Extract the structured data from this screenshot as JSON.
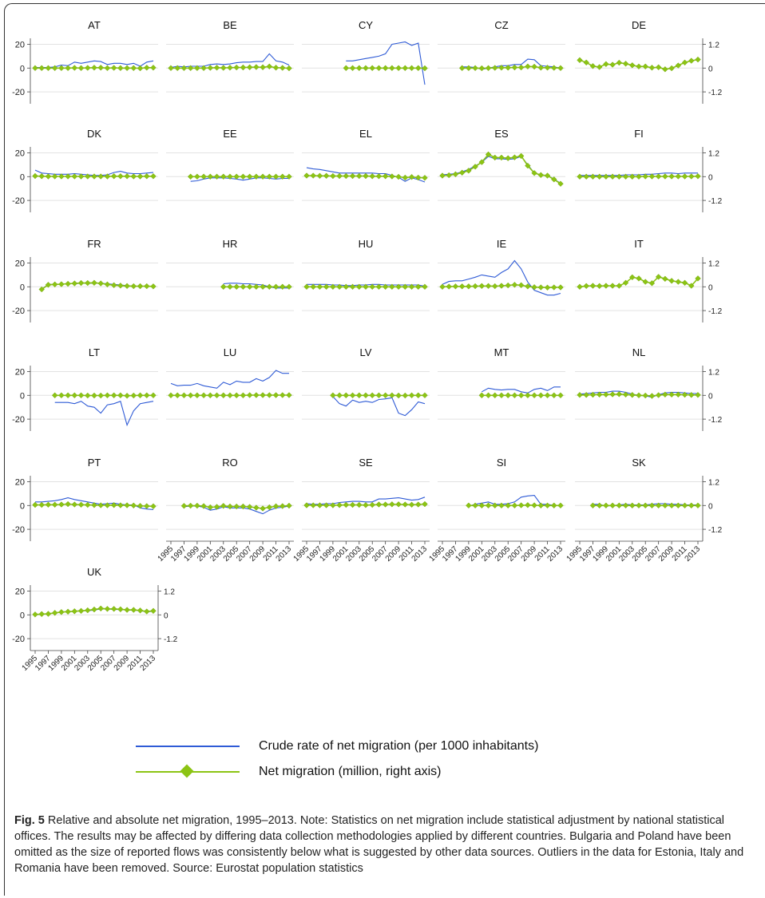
{
  "colors": {
    "rate": "#2f5bd6",
    "net": "#8cc414",
    "grid": "#e2e2e2",
    "axis": "#444444"
  },
  "legend": {
    "rate_label": "Crude rate of net migration (per 1000 inhabitants)",
    "net_label": "Net migration (million, right axis)"
  },
  "caption": {
    "label": "Fig. 5",
    "text": " Relative and absolute net migration, 1995–2013. Note: Statistics on net migration include statistical adjustment by national statistical offices. The results may be affected by differing data collection methodologies applied by different countries. Bulgaria and Poland have been omitted as the size of reported flows was consistently below what is suggested by other data sources. Outliers in the data for Estonia, Italy and Romania have been removed. Source: Eurostat population statistics"
  },
  "chart_data": {
    "type": "line",
    "x": [
      1995,
      1996,
      1997,
      1998,
      1999,
      2000,
      2001,
      2002,
      2003,
      2004,
      2005,
      2006,
      2007,
      2008,
      2009,
      2010,
      2011,
      2012,
      2013
    ],
    "x_tick_labels": [
      "1995",
      "1997",
      "1999",
      "2001",
      "2003",
      "2005",
      "2007",
      "2009",
      "2011",
      "2013"
    ],
    "left_axis": {
      "ticks": [
        20,
        0,
        -20
      ],
      "ylim": [
        -30,
        25
      ]
    },
    "right_axis": {
      "ticks": [
        "1.2",
        "0",
        "-1.2"
      ],
      "tick_values": [
        1.2,
        0,
        -1.2
      ],
      "ylim": [
        -1.8,
        1.5
      ]
    },
    "series_labels": [
      "Crude rate of net migration (per 1000 inhabitants)",
      "Net migration (million, right axis)"
    ],
    "panels": [
      {
        "country": "AT",
        "rate": [
          0.5,
          0.5,
          0.5,
          1,
          2.5,
          2,
          5,
          4,
          5,
          6,
          5.5,
          3,
          4,
          4,
          3,
          4,
          1.5,
          5,
          6
        ],
        "net": [
          0,
          0,
          0,
          0,
          0,
          0,
          0.01,
          0,
          0.01,
          0.02,
          0.02,
          0,
          0.01,
          0,
          0,
          0,
          -0.01,
          0.02,
          0.02
        ]
      },
      {
        "country": "BE",
        "rate": [
          0.5,
          1.5,
          1,
          1.5,
          1.5,
          1.5,
          3,
          3.5,
          3,
          3.5,
          4.5,
          5,
          5,
          5.5,
          5.5,
          12,
          6,
          5,
          2.5
        ],
        "net": [
          0,
          0,
          0,
          0,
          0,
          0,
          0.01,
          0.02,
          0.01,
          0.02,
          0.03,
          0.03,
          0.04,
          0.05,
          0.04,
          0.08,
          0.02,
          0.01,
          -0.01
        ]
      },
      {
        "country": "CY",
        "rate": [
          null,
          null,
          null,
          null,
          null,
          null,
          6,
          6,
          7,
          8,
          9,
          10,
          12,
          20,
          21,
          22,
          19,
          21,
          -14
        ],
        "net": [
          null,
          null,
          null,
          null,
          null,
          null,
          0,
          0,
          0,
          0,
          0,
          0,
          0,
          0,
          0,
          0,
          0,
          0,
          -0.01
        ]
      },
      {
        "country": "CZ",
        "rate": [
          null,
          null,
          null,
          1,
          1,
          0.5,
          -1,
          0,
          1,
          2,
          2,
          3,
          3,
          7.5,
          7,
          2,
          1.5,
          1,
          0
        ],
        "net": [
          null,
          null,
          null,
          0,
          0,
          0,
          -0.01,
          0,
          0.01,
          0.02,
          0.02,
          0.03,
          0.03,
          0.08,
          0.07,
          0.02,
          0.02,
          0.01,
          0
        ]
      },
      {
        "country": "DE",
        "rate": [
          null,
          null,
          null,
          null,
          null,
          null,
          null,
          null,
          null,
          null,
          null,
          null,
          null,
          null,
          null,
          null,
          null,
          null,
          null
        ],
        "net": [
          0.4,
          0.28,
          0.1,
          0.05,
          0.2,
          0.17,
          0.27,
          0.22,
          0.14,
          0.08,
          0.08,
          0.02,
          0.04,
          -0.06,
          -0.01,
          0.13,
          0.28,
          0.37,
          0.43
        ]
      },
      {
        "country": "DK",
        "rate": [
          5.5,
          3,
          2.5,
          2,
          2,
          2,
          2.5,
          2,
          1.5,
          1,
          1,
          1.5,
          3.5,
          4.5,
          3,
          2.5,
          2.5,
          3,
          3.5
        ],
        "net": [
          0.03,
          0.02,
          0.01,
          0.01,
          0.01,
          0.01,
          0.01,
          0.01,
          0.01,
          0.01,
          0.01,
          0.01,
          0.02,
          0.02,
          0.02,
          0.01,
          0.01,
          0.02,
          0.02
        ]
      },
      {
        "country": "EE",
        "rate": [
          null,
          null,
          null,
          -4,
          -3.5,
          -2,
          -1,
          -1,
          -1,
          -1.5,
          -2,
          -3,
          -2,
          -1,
          -1,
          -1.5,
          -2,
          -1.5,
          -1.5
        ],
        "net": [
          null,
          null,
          null,
          0,
          0,
          0,
          0,
          0,
          0,
          0,
          0,
          0,
          0,
          0,
          0,
          0,
          0,
          0,
          0
        ]
      },
      {
        "country": "EL",
        "rate": [
          7.5,
          6.5,
          6,
          5,
          4,
          3,
          3,
          3,
          3,
          3,
          3,
          2.5,
          2.5,
          1,
          -0.5,
          -4,
          -1,
          -2.5,
          -4.5
        ],
        "net": [
          0.05,
          0.05,
          0.04,
          0.04,
          0.03,
          0.03,
          0.03,
          0.03,
          0.03,
          0.03,
          0.02,
          0.02,
          0.02,
          0.01,
          -0.01,
          -0.05,
          -0.02,
          -0.05,
          -0.06
        ]
      },
      {
        "country": "ES",
        "rate": [
          1.5,
          2,
          2.5,
          4,
          6,
          9,
          12,
          17,
          15,
          15,
          14.5,
          15,
          17,
          10,
          3,
          1.5,
          1,
          -2,
          -5.5
        ],
        "net": [
          0.05,
          0.07,
          0.12,
          0.2,
          0.3,
          0.5,
          0.73,
          1.12,
          0.96,
          0.96,
          0.93,
          0.97,
          1.04,
          0.55,
          0.18,
          0.08,
          0.05,
          -0.14,
          -0.36
        ]
      },
      {
        "country": "FI",
        "rate": [
          1,
          1,
          1,
          1,
          1,
          1,
          1,
          1.5,
          1.5,
          1.5,
          2,
          2,
          2.5,
          3,
          3,
          2.5,
          3,
          3,
          3
        ],
        "net": [
          0,
          0,
          0,
          0,
          0,
          0,
          0,
          0,
          0,
          0,
          0.01,
          0.01,
          0.01,
          0.01,
          0.01,
          0.01,
          0.01,
          0.01,
          0.02
        ]
      },
      {
        "country": "FR",
        "rate": [
          null,
          -2,
          2,
          2,
          2,
          2.5,
          2.5,
          3,
          3,
          3,
          3,
          2.5,
          2,
          1.5,
          1,
          0.5,
          0.5,
          0.5,
          0.5
        ],
        "net": [
          null,
          -0.13,
          0.1,
          0.12,
          0.13,
          0.15,
          0.17,
          0.19,
          0.19,
          0.2,
          0.17,
          0.12,
          0.08,
          0.06,
          0.04,
          0.03,
          0.03,
          0.03,
          0.02
        ]
      },
      {
        "country": "HR",
        "rate": [
          null,
          null,
          null,
          null,
          null,
          null,
          null,
          null,
          2.5,
          3,
          3,
          2.5,
          2.5,
          2,
          1.5,
          0,
          -1,
          -1,
          -1
        ],
        "net": [
          null,
          null,
          null,
          null,
          null,
          null,
          null,
          null,
          0,
          0,
          0,
          0,
          0,
          0,
          0,
          0,
          0,
          0,
          0
        ]
      },
      {
        "country": "HU",
        "rate": [
          2,
          2,
          2,
          2,
          1.5,
          1.5,
          1,
          1,
          1.5,
          1.5,
          2,
          2,
          1.5,
          1.5,
          1.5,
          1.5,
          1.5,
          1.5,
          0.5
        ],
        "net": [
          0,
          0,
          0,
          0,
          0,
          0,
          0,
          0,
          0,
          0,
          0,
          0,
          0,
          0,
          0,
          0,
          0,
          0,
          0
        ]
      },
      {
        "country": "IE",
        "rate": [
          2,
          4.5,
          5,
          5,
          6.5,
          8,
          10,
          9,
          8,
          12,
          15,
          22,
          15,
          4,
          -3,
          -5,
          -7,
          -7,
          -5.5
        ],
        "net": [
          0,
          0.01,
          0.02,
          0.02,
          0.02,
          0.03,
          0.04,
          0.04,
          0.03,
          0.05,
          0.07,
          0.1,
          0.08,
          0.02,
          -0.02,
          -0.03,
          -0.04,
          -0.03,
          -0.03
        ]
      },
      {
        "country": "IT",
        "rate": [
          null,
          null,
          null,
          null,
          null,
          null,
          null,
          null,
          null,
          null,
          null,
          null,
          null,
          null,
          null,
          null,
          null,
          null,
          null
        ],
        "net": [
          0,
          0.04,
          0.05,
          0.04,
          0.05,
          0.05,
          0.05,
          0.2,
          0.48,
          0.42,
          0.25,
          0.18,
          0.5,
          0.4,
          0.3,
          0.25,
          0.2,
          0.05,
          0.42
        ]
      },
      {
        "country": "LT",
        "rate": [
          null,
          null,
          null,
          -6,
          -6,
          -6,
          -7,
          -5,
          -9,
          -10,
          -15,
          -8,
          -7,
          -5,
          -25,
          -13,
          -7,
          -6,
          -5
        ],
        "net": [
          null,
          null,
          null,
          0,
          0,
          0,
          0,
          0,
          -0.01,
          -0.01,
          -0.01,
          0,
          0,
          0,
          -0.02,
          -0.01,
          0,
          0,
          0
        ]
      },
      {
        "country": "LU",
        "rate": [
          10,
          8,
          8.5,
          8.5,
          10,
          8,
          7,
          6,
          11,
          9,
          12,
          11,
          11,
          14,
          12,
          15,
          21,
          18.5,
          18.5
        ],
        "net": [
          0,
          0,
          0,
          0,
          0,
          0,
          0,
          0,
          0,
          0,
          0,
          0,
          0.01,
          0.01,
          0.01,
          0.01,
          0.01,
          0.01,
          0.01
        ]
      },
      {
        "country": "LV",
        "rate": [
          null,
          null,
          null,
          null,
          -1,
          -7,
          -9,
          -4,
          -6,
          -5,
          -6,
          -3.5,
          -3,
          -2,
          -15,
          -17,
          -12,
          -5.5,
          -7
        ],
        "net": [
          null,
          null,
          null,
          null,
          0,
          0,
          0,
          0,
          0,
          0,
          0,
          0,
          0,
          0,
          -0.01,
          -0.01,
          0,
          0,
          0
        ]
      },
      {
        "country": "MT",
        "rate": [
          null,
          null,
          null,
          null,
          null,
          null,
          3,
          6,
          5,
          4.5,
          5,
          5,
          3,
          2,
          5,
          6,
          4,
          7,
          7
        ],
        "net": [
          null,
          null,
          null,
          null,
          null,
          null,
          0,
          0,
          0,
          0,
          0,
          0,
          0,
          0,
          0,
          0,
          0,
          0,
          0
        ]
      },
      {
        "country": "NL",
        "rate": [
          1,
          1.5,
          2,
          2.5,
          2.5,
          3.5,
          3.5,
          2.5,
          1,
          0,
          -0.5,
          -1.5,
          0.5,
          2,
          2.5,
          2.5,
          2,
          1.5,
          1.5
        ],
        "net": [
          0.02,
          0.02,
          0.03,
          0.04,
          0.04,
          0.05,
          0.06,
          0.04,
          0.02,
          0,
          -0.01,
          -0.03,
          0.01,
          0.04,
          0.04,
          0.04,
          0.03,
          0.02,
          0.02
        ]
      },
      {
        "country": "PT",
        "rate": [
          3,
          3,
          3.5,
          4,
          5,
          6.5,
          5,
          4,
          3,
          2,
          1,
          1.5,
          2,
          1,
          0.5,
          0.5,
          -2,
          -3,
          -3.5
        ],
        "net": [
          0.03,
          0.03,
          0.04,
          0.04,
          0.05,
          0.07,
          0.05,
          0.04,
          0.03,
          0.02,
          0.01,
          0.01,
          0.02,
          0.01,
          0.01,
          0,
          -0.02,
          -0.03,
          -0.04
        ]
      },
      {
        "country": "RO",
        "rate": [
          null,
          null,
          -1,
          -0.5,
          -0.5,
          -1.5,
          -4,
          -3,
          -1,
          -2,
          -2,
          -2,
          -3,
          -5,
          -7,
          -4,
          -2,
          -1.5,
          -0.5
        ],
        "net": [
          null,
          null,
          -0.02,
          -0.01,
          -0.01,
          -0.03,
          -0.09,
          -0.07,
          -0.02,
          -0.05,
          -0.05,
          -0.05,
          -0.07,
          -0.11,
          -0.15,
          -0.09,
          -0.04,
          -0.03,
          -0.01
        ]
      },
      {
        "country": "SE",
        "rate": [
          1.5,
          1,
          1,
          1.5,
          1.5,
          2.5,
          3,
          3.5,
          3.5,
          3,
          3,
          5.5,
          5.5,
          6,
          6.5,
          5.5,
          4.5,
          5,
          7
        ],
        "net": [
          0.01,
          0.01,
          0.01,
          0.01,
          0.01,
          0.02,
          0.03,
          0.03,
          0.03,
          0.02,
          0.03,
          0.05,
          0.05,
          0.06,
          0.06,
          0.05,
          0.04,
          0.05,
          0.07
        ]
      },
      {
        "country": "SI",
        "rate": [
          null,
          null,
          null,
          null,
          -0.5,
          1,
          2,
          3,
          1,
          1,
          1.5,
          3,
          7,
          8,
          8.5,
          1,
          1,
          0,
          0
        ],
        "net": [
          null,
          null,
          null,
          null,
          0,
          0,
          0,
          0,
          0,
          0,
          0,
          0,
          0.01,
          0.02,
          0.01,
          0,
          0,
          0,
          0
        ]
      },
      {
        "country": "SK",
        "rate": [
          null,
          null,
          1,
          1,
          -0.5,
          0,
          0.5,
          1,
          0.5,
          0.5,
          0.5,
          1,
          1.5,
          1.5,
          1,
          1,
          0.5,
          0.5,
          0.5
        ],
        "net": [
          null,
          null,
          0,
          0,
          0,
          0,
          0,
          0,
          0,
          0,
          0,
          0,
          0,
          0,
          0,
          0,
          0,
          0,
          0
        ]
      },
      {
        "country": "UK",
        "rate": [
          0,
          0.5,
          1,
          1.5,
          2.5,
          2.5,
          3,
          3.5,
          3.5,
          4,
          5,
          5,
          4.5,
          4.5,
          4,
          4,
          3.5,
          2.5,
          3
        ],
        "net": [
          0.02,
          0.04,
          0.05,
          0.1,
          0.14,
          0.16,
          0.18,
          0.2,
          0.23,
          0.27,
          0.32,
          0.3,
          0.3,
          0.28,
          0.25,
          0.25,
          0.22,
          0.17,
          0.2
        ]
      }
    ]
  }
}
